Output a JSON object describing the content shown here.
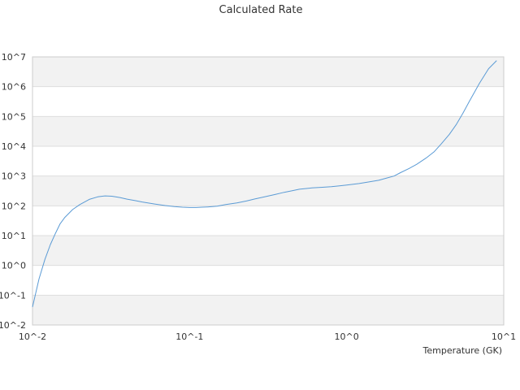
{
  "chart_data": {
    "type": "line",
    "title": "Calculated Rate",
    "xlabel": "Temperature (GK)",
    "ylabel": "",
    "x_scale": "log",
    "y_scale": "log",
    "xlim": [
      0.01,
      10
    ],
    "ylim": [
      0.01,
      10000000
    ],
    "grid": "alternating horizontal bands",
    "x_ticks": [
      {
        "value": 0.01,
        "label": "10^-2"
      },
      {
        "value": 0.1,
        "label": "10^-1"
      },
      {
        "value": 1,
        "label": "10^0"
      },
      {
        "value": 10,
        "label": "10^1"
      }
    ],
    "y_ticks": [
      {
        "value": 0.01,
        "label": "10^-2"
      },
      {
        "value": 0.1,
        "label": "10^-1"
      },
      {
        "value": 1,
        "label": "10^0"
      },
      {
        "value": 10,
        "label": "10^1"
      },
      {
        "value": 100,
        "label": "10^2"
      },
      {
        "value": 1000,
        "label": "10^3"
      },
      {
        "value": 10000,
        "label": "10^4"
      },
      {
        "value": 100000,
        "label": "10^5"
      },
      {
        "value": 1000000,
        "label": "10^6"
      },
      {
        "value": 10000000,
        "label": "10^7"
      }
    ],
    "series": [
      {
        "color": "#5b9bd5",
        "x": [
          0.01,
          0.011,
          0.012,
          0.013,
          0.014,
          0.015,
          0.016,
          0.018,
          0.02,
          0.023,
          0.026,
          0.029,
          0.032,
          0.036,
          0.04,
          0.045,
          0.05,
          0.06,
          0.07,
          0.08,
          0.09,
          0.1,
          0.11,
          0.12,
          0.13,
          0.15,
          0.17,
          0.2,
          0.23,
          0.26,
          0.3,
          0.35,
          0.4,
          0.45,
          0.5,
          0.6,
          0.7,
          0.8,
          0.9,
          1.0,
          1.2,
          1.4,
          1.6,
          1.8,
          2.0,
          2.2,
          2.5,
          2.8,
          3.2,
          3.6,
          4.0,
          4.5,
          5.0,
          5.5,
          6.0,
          7.0,
          8.0,
          9.0
        ],
        "y": [
          0.04,
          0.35,
          1.6,
          5.0,
          12,
          25,
          40,
          75,
          110,
          165,
          200,
          215,
          210,
          190,
          168,
          150,
          135,
          115,
          102,
          95,
          90,
          88,
          88,
          90,
          92,
          98,
          110,
          125,
          145,
          170,
          200,
          240,
          285,
          320,
          360,
          400,
          420,
          440,
          470,
          500,
          560,
          640,
          720,
          860,
          1000,
          1300,
          1800,
          2500,
          4000,
          6500,
          12000,
          25000,
          55000,
          130000,
          300000,
          1300000,
          4000000,
          7500000
        ]
      }
    ]
  }
}
